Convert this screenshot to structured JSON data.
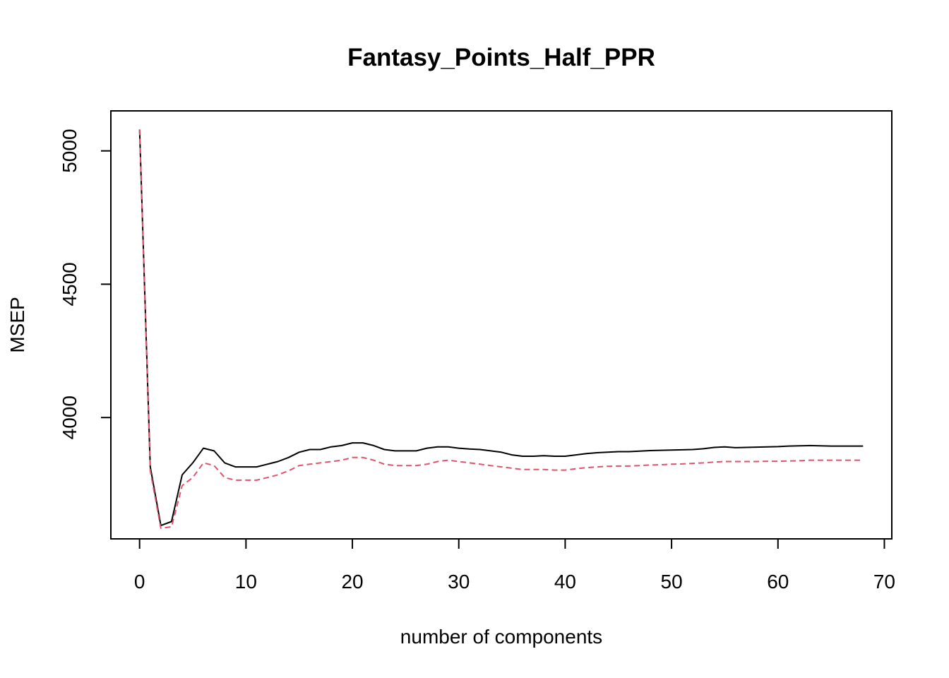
{
  "chart_data": {
    "type": "line",
    "title": "Fantasy_Points_Half_PPR",
    "xlabel": "number of components",
    "ylabel": "MSEP",
    "xlim": [
      -2.7,
      70.7
    ],
    "ylim": [
      3545,
      5150
    ],
    "xticks": [
      0,
      10,
      20,
      30,
      40,
      50,
      60,
      70
    ],
    "yticks": [
      4000,
      4500,
      5000
    ],
    "grid": false,
    "legend": "none",
    "series": [
      {
        "color": "#000000",
        "linestyle": "solid",
        "x": [
          0,
          1,
          2,
          3,
          4,
          5,
          6,
          7,
          8,
          9,
          10,
          11,
          12,
          13,
          14,
          15,
          16,
          17,
          18,
          19,
          20,
          21,
          22,
          23,
          24,
          25,
          26,
          27,
          28,
          29,
          30,
          31,
          32,
          33,
          34,
          35,
          36,
          37,
          38,
          39,
          40,
          41,
          42,
          43,
          44,
          45,
          46,
          47,
          48,
          49,
          50,
          51,
          52,
          53,
          54,
          55,
          56,
          57,
          58,
          59,
          60,
          61,
          62,
          63,
          64,
          65,
          66,
          67,
          68
        ],
        "y": [
          5080,
          3815,
          3595,
          3610,
          3785,
          3830,
          3885,
          3875,
          3830,
          3815,
          3815,
          3815,
          3825,
          3835,
          3850,
          3870,
          3880,
          3880,
          3890,
          3895,
          3905,
          3905,
          3895,
          3880,
          3875,
          3875,
          3875,
          3885,
          3890,
          3890,
          3885,
          3882,
          3880,
          3875,
          3870,
          3860,
          3855,
          3855,
          3857,
          3855,
          3855,
          3860,
          3865,
          3868,
          3870,
          3872,
          3872,
          3874,
          3876,
          3877,
          3878,
          3879,
          3880,
          3883,
          3888,
          3890,
          3887,
          3888,
          3889,
          3890,
          3891,
          3893,
          3894,
          3895,
          3894,
          3893,
          3893,
          3893,
          3893
        ]
      },
      {
        "color": "#DF536B",
        "linestyle": "dashed",
        "x": [
          0,
          1,
          2,
          3,
          4,
          5,
          6,
          7,
          8,
          9,
          10,
          11,
          12,
          13,
          14,
          15,
          16,
          17,
          18,
          19,
          20,
          21,
          22,
          23,
          24,
          25,
          26,
          27,
          28,
          29,
          30,
          31,
          32,
          33,
          34,
          35,
          36,
          37,
          38,
          39,
          40,
          41,
          42,
          43,
          44,
          45,
          46,
          47,
          48,
          49,
          50,
          51,
          52,
          53,
          54,
          55,
          56,
          57,
          58,
          59,
          60,
          61,
          62,
          63,
          64,
          65,
          66,
          67,
          68
        ],
        "y": [
          5080,
          3800,
          3585,
          3590,
          3745,
          3775,
          3830,
          3820,
          3775,
          3765,
          3765,
          3765,
          3775,
          3785,
          3800,
          3820,
          3825,
          3830,
          3835,
          3840,
          3850,
          3850,
          3840,
          3825,
          3820,
          3820,
          3820,
          3825,
          3835,
          3840,
          3835,
          3830,
          3825,
          3820,
          3815,
          3810,
          3805,
          3805,
          3805,
          3803,
          3803,
          3808,
          3812,
          3815,
          3817,
          3818,
          3818,
          3820,
          3822,
          3823,
          3825,
          3826,
          3828,
          3830,
          3833,
          3835,
          3835,
          3835,
          3835,
          3836,
          3836,
          3837,
          3838,
          3840,
          3840,
          3840,
          3840,
          3840,
          3840
        ]
      }
    ]
  }
}
